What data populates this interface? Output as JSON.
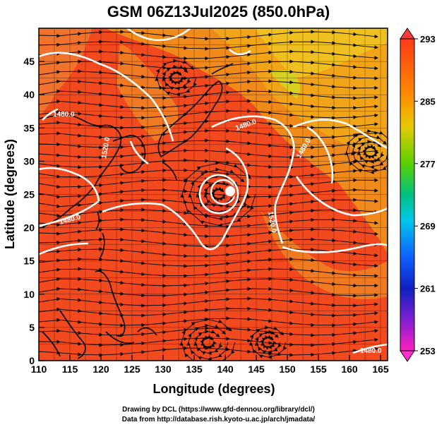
{
  "title": "GSM 06Z13Jul2025 (850.0hPa)",
  "xlabel": "Longitude (degrees)",
  "ylabel": "Latitude  (degrees)",
  "x_ticks": [
    "110",
    "115",
    "120",
    "125",
    "130",
    "135",
    "140",
    "145",
    "150",
    "155",
    "160",
    "165"
  ],
  "y_ticks": [
    "0",
    "5",
    "10",
    "15",
    "20",
    "25",
    "30",
    "35",
    "40",
    "45"
  ],
  "colorbar_ticks": [
    "293",
    "285",
    "277",
    "269",
    "261",
    "253"
  ],
  "contour_labels": [
    "1480.0",
    "1480.0",
    "1480.0",
    "1520.0",
    "1520.0",
    "1480.0",
    "1480.0"
  ],
  "credits": {
    "line1": "Drawing by DCL (https://www.gfd-dennou.org/library/dcl/)",
    "line2": "Data from http://database.rish.kyoto-u.ac.jp/arch/jmadata/"
  },
  "colors": {
    "warm_fill": "#f24a1e",
    "orange_fill": "#f08a1a",
    "contour": "#ffffff",
    "streamline": "#000000"
  }
}
